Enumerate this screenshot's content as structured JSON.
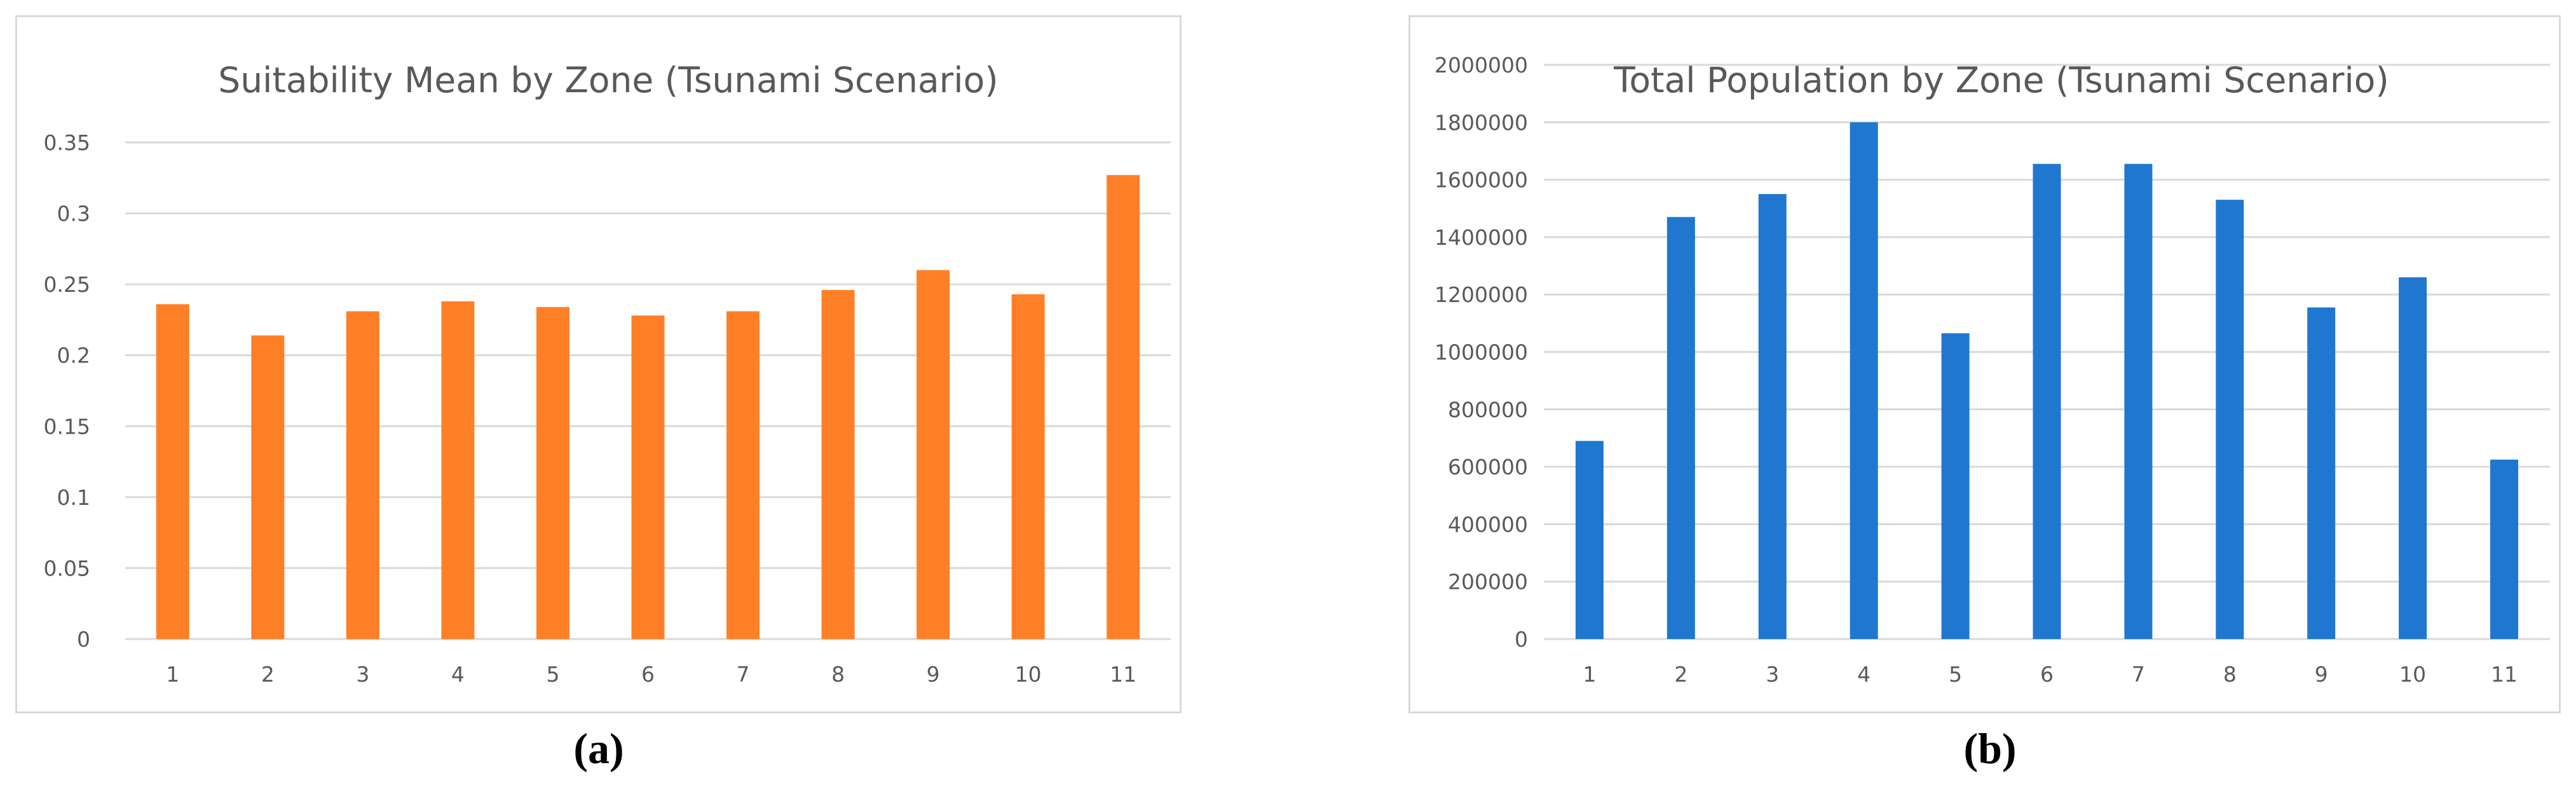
{
  "chart_data": [
    {
      "type": "bar",
      "title": "Suitability Mean by Zone (Tsunami Scenario)",
      "xlabel": "",
      "ylabel": "",
      "categories": [
        "1",
        "2",
        "3",
        "4",
        "5",
        "6",
        "7",
        "8",
        "9",
        "10",
        "11"
      ],
      "values": [
        0.236,
        0.214,
        0.231,
        0.238,
        0.234,
        0.228,
        0.231,
        0.246,
        0.26,
        0.243,
        0.327
      ],
      "ylim": [
        0,
        0.35
      ],
      "yticks": [
        "0",
        "0.05",
        "0.1",
        "0.15",
        "0.2",
        "0.25",
        "0.3",
        "0.35"
      ],
      "color": "#FF7F27",
      "grid": true,
      "legend": "none"
    },
    {
      "type": "bar",
      "title": "Total Population by Zone (Tsunami Scenario)",
      "xlabel": "",
      "ylabel": "",
      "categories": [
        "1",
        "2",
        "3",
        "4",
        "5",
        "6",
        "7",
        "8",
        "9",
        "10",
        "11"
      ],
      "values": [
        690000,
        1470000,
        1550000,
        1800000,
        1065000,
        1655000,
        1655000,
        1530000,
        1155000,
        1260000,
        625000
      ],
      "ylim": [
        0,
        2000000
      ],
      "yticks": [
        "0",
        "200000",
        "400000",
        "600000",
        "800000",
        "1000000",
        "1200000",
        "1400000",
        "1600000",
        "1800000",
        "2000000"
      ],
      "color": "#1F77D0",
      "grid": true,
      "legend": "none"
    }
  ],
  "captions": {
    "a": "(a)",
    "b": "(b)"
  }
}
